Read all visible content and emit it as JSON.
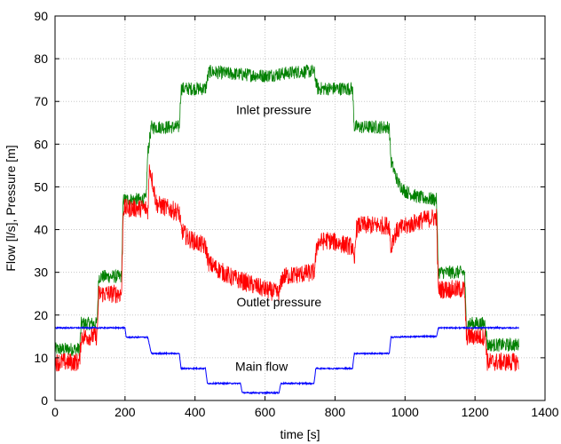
{
  "chart_data": {
    "type": "line",
    "title": "",
    "xlabel": "time [s]",
    "ylabel": "Flow [l/s], Pressure [m]",
    "xlim": [
      0,
      1400
    ],
    "ylim": [
      0,
      90
    ],
    "xticks": [
      0,
      200,
      400,
      600,
      800,
      1000,
      1200,
      1400
    ],
    "yticks": [
      0,
      10,
      20,
      30,
      40,
      50,
      60,
      70,
      80,
      90
    ],
    "grid": true,
    "legend": "none",
    "annotations": [
      {
        "text": "Inlet pressure",
        "x": 625,
        "y": 67
      },
      {
        "text": "Outlet pressure",
        "x": 640,
        "y": 22
      },
      {
        "text": "Main flow",
        "x": 590,
        "y": 7
      }
    ],
    "series": [
      {
        "color": "#008000",
        "noise": 1.6,
        "x": [
          0,
          70,
          75,
          120,
          125,
          190,
          195,
          260,
          265,
          275,
          355,
          360,
          430,
          440,
          500,
          600,
          700,
          740,
          750,
          850,
          855,
          955,
          960,
          980,
          1000,
          1040,
          1090,
          1095,
          1170,
          1175,
          1230,
          1235,
          1325
        ],
        "y": [
          12,
          12,
          18,
          18,
          29,
          29,
          47,
          47,
          58,
          64,
          64,
          73,
          73,
          77,
          76.5,
          76,
          77,
          77,
          73,
          73,
          64,
          64,
          56,
          51,
          49,
          47.5,
          47,
          30,
          30,
          18,
          18,
          13,
          13
        ]
      },
      {
        "color": "#ff0000",
        "noise": 2.2,
        "x": [
          0,
          70,
          75,
          120,
          125,
          190,
          195,
          260,
          265,
          270,
          290,
          355,
          360,
          380,
          430,
          440,
          500,
          600,
          640,
          650,
          740,
          750,
          780,
          850,
          855,
          860,
          870,
          955,
          960,
          965,
          980,
          1040,
          1090,
          1095,
          1170,
          1175,
          1230,
          1235,
          1325
        ],
        "y": [
          9,
          9,
          15,
          15,
          25,
          25,
          45,
          45,
          44,
          55,
          46,
          44,
          40,
          38,
          36,
          32,
          29,
          26,
          25,
          29,
          30,
          37,
          37.5,
          36,
          31,
          40,
          41,
          41,
          35,
          38,
          40,
          42,
          43,
          26,
          26,
          15,
          15,
          9,
          9
        ]
      },
      {
        "color": "#0000ff",
        "noise": 0.15,
        "x": [
          0,
          200,
          203,
          265,
          275,
          355,
          360,
          430,
          435,
          530,
          535,
          640,
          645,
          740,
          745,
          850,
          855,
          955,
          960,
          1050,
          1090,
          1095,
          1325
        ],
        "y": [
          17,
          17,
          14.8,
          14.8,
          11,
          11,
          7.5,
          7.5,
          4,
          4,
          1.8,
          1.8,
          4,
          4,
          7.5,
          7.5,
          11,
          11,
          14.8,
          15,
          15,
          17,
          17
        ]
      }
    ]
  }
}
